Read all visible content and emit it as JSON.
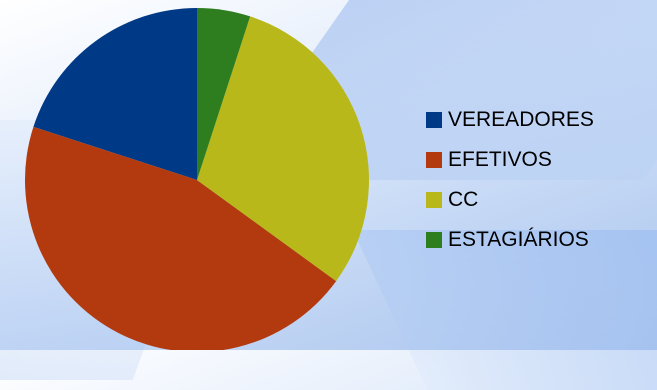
{
  "chart_data": {
    "type": "pie",
    "title": "",
    "legend_position": "right",
    "series": [
      {
        "categories": [
          "VEREADORES",
          "EFETIVOS",
          "CC",
          "ESTAGIÁRIOS"
        ],
        "values": [
          20,
          45,
          30,
          5
        ],
        "colors": [
          "#003a86",
          "#b23a0e",
          "#b9b81a",
          "#2e7d1e"
        ]
      }
    ]
  }
}
